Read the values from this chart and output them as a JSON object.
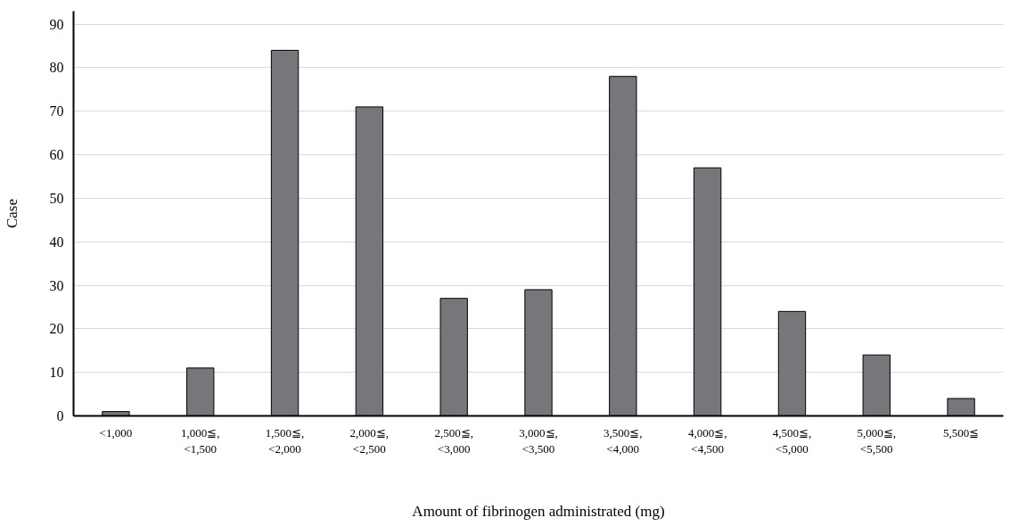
{
  "chart_data": {
    "type": "bar",
    "xlabel": "Amount of fibrinogen administrated (mg)",
    "ylabel": "Case",
    "categories": [
      "<1,000",
      "1,000≦,\n<1,500",
      "1,500≦,\n<2,000",
      "2,000≦,\n<2,500",
      "2,500≦,\n<3,000",
      "3,000≦,\n<3,500",
      "3,500≦,\n<4,000",
      "4,000≦,\n<4,500",
      "4,500≦,\n<5,000",
      "5,000≦,\n<5,500",
      "5,500≦"
    ],
    "values": [
      1,
      11,
      84,
      71,
      27,
      29,
      78,
      57,
      24,
      14,
      4
    ],
    "color": "#76777b",
    "ylim": [
      0,
      93
    ],
    "yticks": [
      0,
      10,
      20,
      30,
      40,
      50,
      60,
      70,
      80,
      90
    ],
    "grid": "y"
  }
}
